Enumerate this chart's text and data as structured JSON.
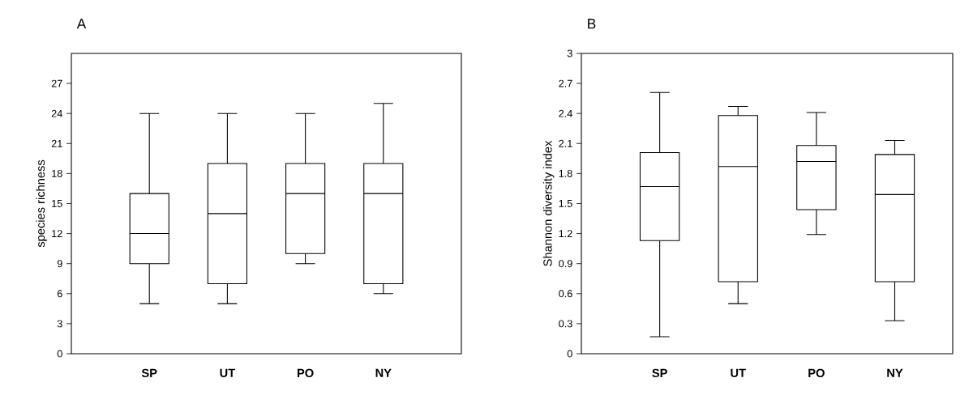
{
  "chart_data": [
    {
      "type": "box",
      "title": "A",
      "ylabel": "species richness",
      "categories": [
        "SP",
        "UT",
        "PO",
        "NY"
      ],
      "boxes": [
        {
          "low": 5,
          "q1": 9,
          "median": 12,
          "q3": 16,
          "high": 24
        },
        {
          "low": 5,
          "q1": 7,
          "median": 14,
          "q3": 19,
          "high": 24
        },
        {
          "low": 9,
          "q1": 10,
          "median": 16,
          "q3": 19,
          "high": 24
        },
        {
          "low": 6,
          "q1": 7,
          "median": 16,
          "q3": 19,
          "high": 25
        }
      ],
      "ylim": [
        0,
        30
      ],
      "yticks": [
        0,
        3,
        6,
        9,
        12,
        15,
        18,
        21,
        24,
        27
      ]
    },
    {
      "type": "box",
      "title": "B",
      "ylabel": "Shannon diversity index",
      "categories": [
        "SP",
        "UT",
        "PO",
        "NY"
      ],
      "boxes": [
        {
          "low": 0.17,
          "q1": 1.13,
          "median": 1.67,
          "q3": 2.01,
          "high": 2.61
        },
        {
          "low": 0.5,
          "q1": 0.72,
          "median": 1.87,
          "q3": 2.38,
          "high": 2.47
        },
        {
          "low": 1.19,
          "q1": 1.44,
          "median": 1.92,
          "q3": 2.08,
          "high": 2.41
        },
        {
          "low": 0.33,
          "q1": 0.72,
          "median": 1.59,
          "q3": 1.99,
          "high": 2.13
        }
      ],
      "ylim": [
        0,
        3
      ],
      "yticks": [
        0,
        0.3,
        0.6,
        0.9,
        1.2,
        1.5,
        1.8,
        2.1,
        2.4,
        2.7,
        3
      ]
    }
  ]
}
